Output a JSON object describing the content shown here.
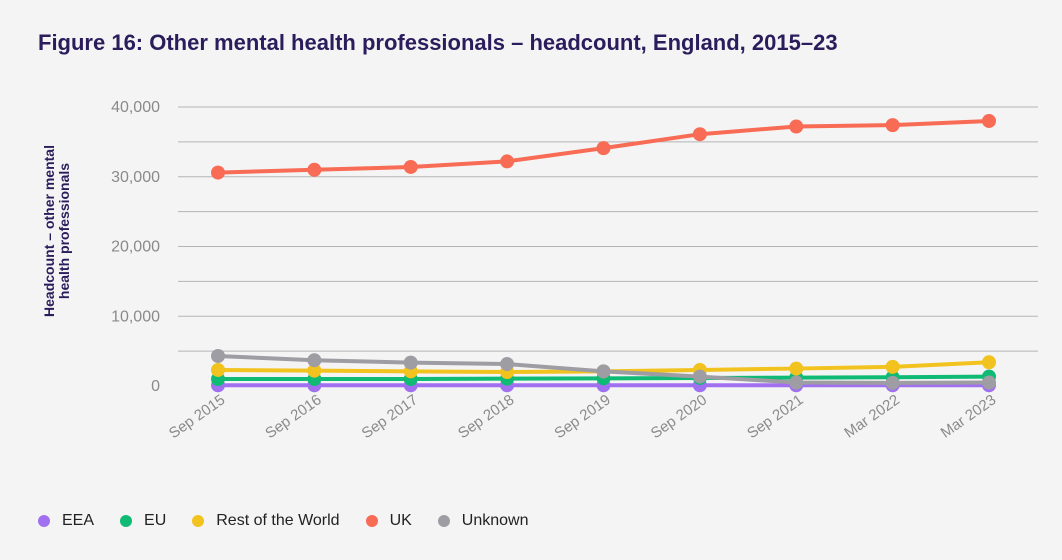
{
  "chart_data": {
    "type": "line",
    "title": "Figure 16: Other mental health professionals – headcount, England, 2015–23",
    "ylabel": "Headcount – other mental\nhealth professionals",
    "xlabel": "",
    "categories": [
      "Sep 2015",
      "Sep 2016",
      "Sep 2017",
      "Sep 2018",
      "Sep 2019",
      "Sep 2020",
      "Sep 2021",
      "Mar 2022",
      "Mar 2023"
    ],
    "y_ticks": [
      "0",
      "10,000",
      "20,000",
      "30,000",
      "40,000"
    ],
    "ylim": [
      0,
      40000
    ],
    "grid": true,
    "legend_position": "bottom-left",
    "series": [
      {
        "name": "EEA",
        "color": "#a070f0",
        "values": [
          100,
          100,
          100,
          100,
          100,
          100,
          100,
          100,
          100
        ]
      },
      {
        "name": "EU",
        "color": "#0fba74",
        "values": [
          1000,
          1000,
          1000,
          1050,
          1100,
          1150,
          1200,
          1250,
          1350
        ]
      },
      {
        "name": "Rest of the World",
        "color": "#f2c21e",
        "values": [
          2300,
          2200,
          2100,
          2000,
          2100,
          2300,
          2500,
          2750,
          3400
        ]
      },
      {
        "name": "UK",
        "color": "#f86b55",
        "values": [
          30600,
          31000,
          31400,
          32200,
          34100,
          36100,
          37200,
          37400,
          38000
        ]
      },
      {
        "name": "Unknown",
        "color": "#9d9da3",
        "values": [
          4300,
          3700,
          3350,
          3150,
          2100,
          1350,
          500,
          450,
          500
        ]
      }
    ]
  }
}
